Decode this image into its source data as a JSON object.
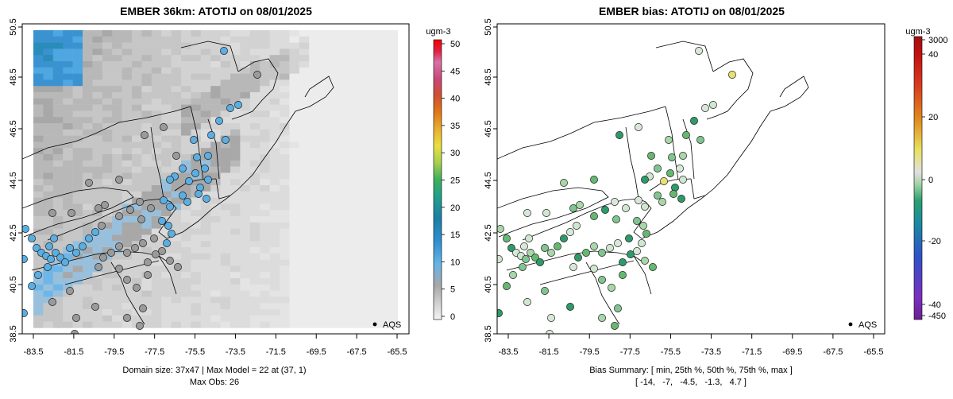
{
  "left_panel": {
    "title": "EMBER 36km: ATOTIJ on 08/01/2025",
    "lat_ticks": [
      "38.5",
      "40.5",
      "42.5",
      "44.5",
      "46.5",
      "48.5",
      "50.5"
    ],
    "lon_ticks": [
      "-83.5",
      "-81.5",
      "-79.5",
      "-77.5",
      "-75.5",
      "-73.5",
      "-71.5",
      "-69.5",
      "-67.5",
      "-65.5"
    ],
    "legend_label": "AQS",
    "caption_line1": "Domain size: 37x47 | Max Model = 22 at (37, 1)",
    "caption_line2": "Max Obs: 26",
    "colorbar": {
      "unit": "ugm-3",
      "ticks": [
        "0",
        "5",
        "10",
        "15",
        "20",
        "25",
        "30",
        "35",
        "40",
        "45",
        "50"
      ],
      "min": 0,
      "max": 50
    }
  },
  "right_panel": {
    "title": "EMBER bias: ATOTIJ on 08/01/2025",
    "lat_ticks": [
      "38.5",
      "40.5",
      "42.5",
      "44.5",
      "46.5",
      "48.5",
      "50.5"
    ],
    "lon_ticks": [
      "-83.5",
      "-81.5",
      "-79.5",
      "-77.5",
      "-75.5",
      "-73.5",
      "-71.5",
      "-69.5",
      "-67.5",
      "-65.5"
    ],
    "legend_label": "AQS",
    "caption_line1": "Bias Summary: [ min, 25th %, 50th %, 75th %, max ]",
    "caption_line2": "[ -14,   -7,   -4.5,   -1.3,   4.7 ]",
    "colorbar": {
      "unit": "ugm-3",
      "ticks": [
        "3000",
        "40",
        "20",
        "0",
        "-20",
        "-40",
        "-450"
      ]
    }
  },
  "colors": {
    "conc_scale": [
      "#f4f4f4",
      "#d0d0d0",
      "#a8a8a8",
      "#64b4e6",
      "#2f8fd0",
      "#1c7fa6",
      "#20a08a",
      "#3cb05a",
      "#88c850",
      "#e8e040",
      "#e8b030",
      "#e07818",
      "#d05030",
      "#c84878",
      "#d870a8",
      "#f0a0d0"
    ],
    "bias_scale": [
      "#7a30c0",
      "#3050c8",
      "#1a8aa0",
      "#2aa070",
      "#86c88a",
      "#dcdcdc",
      "#e8e060",
      "#e09020",
      "#d84020",
      "#c01010"
    ]
  }
}
